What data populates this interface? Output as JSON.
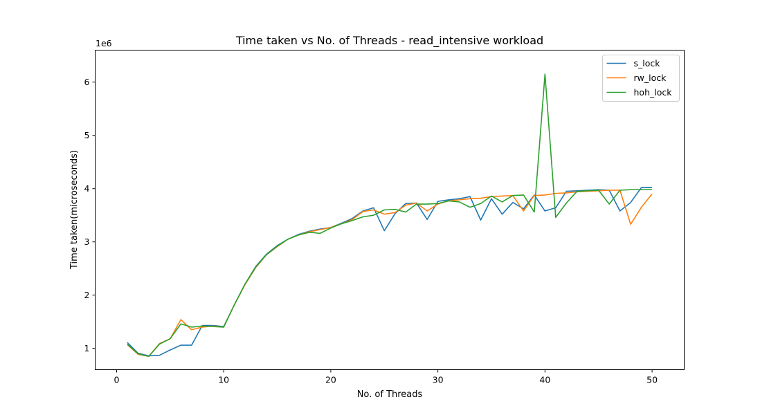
{
  "chart_data": {
    "type": "line",
    "title": "Time taken vs No. of Threads - read_intensive workload",
    "xlabel": "No. of Threads",
    "ylabel": "Time taken(microseconds)",
    "y_offset_label": "1e6",
    "xlim": [
      -2,
      53
    ],
    "ylim": [
      0.6,
      6.6
    ],
    "xticks": [
      0,
      10,
      20,
      30,
      40,
      50
    ],
    "yticks": [
      1,
      2,
      3,
      4,
      5,
      6
    ],
    "grid": false,
    "legend": "top-right",
    "x": [
      1,
      2,
      3,
      4,
      5,
      6,
      7,
      8,
      9,
      10,
      11,
      12,
      13,
      14,
      15,
      16,
      17,
      18,
      19,
      20,
      21,
      22,
      23,
      24,
      25,
      26,
      27,
      28,
      29,
      30,
      31,
      32,
      33,
      34,
      35,
      36,
      37,
      38,
      39,
      40,
      41,
      42,
      43,
      44,
      45,
      46,
      47,
      48,
      49,
      50
    ],
    "series": [
      {
        "name": "s_lock",
        "color": "#1f77b4",
        "values": [
          1.11,
          0.91,
          0.86,
          0.87,
          0.97,
          1.06,
          1.06,
          1.43,
          1.43,
          1.41,
          1.82,
          2.21,
          2.54,
          2.77,
          2.93,
          3.05,
          3.14,
          3.2,
          3.24,
          3.27,
          3.35,
          3.44,
          3.58,
          3.64,
          3.21,
          3.53,
          3.72,
          3.73,
          3.42,
          3.76,
          3.79,
          3.81,
          3.85,
          3.41,
          3.81,
          3.52,
          3.74,
          3.62,
          3.88,
          3.58,
          3.64,
          3.95,
          3.96,
          3.97,
          3.98,
          3.97,
          3.58,
          3.74,
          4.02,
          4.02
        ]
      },
      {
        "name": "rw_lock",
        "color": "#ff7f0e",
        "values": [
          1.07,
          0.89,
          0.85,
          1.09,
          1.18,
          1.54,
          1.35,
          1.4,
          1.42,
          1.4,
          1.82,
          2.2,
          2.52,
          2.76,
          2.91,
          3.05,
          3.13,
          3.19,
          3.23,
          3.27,
          3.34,
          3.42,
          3.57,
          3.6,
          3.52,
          3.55,
          3.69,
          3.73,
          3.58,
          3.71,
          3.77,
          3.79,
          3.81,
          3.82,
          3.85,
          3.86,
          3.87,
          3.58,
          3.87,
          3.88,
          3.91,
          3.92,
          3.94,
          3.95,
          3.96,
          3.97,
          3.97,
          3.33,
          3.65,
          3.9
        ]
      },
      {
        "name": "hoh_lock",
        "color": "#2ca02c",
        "values": [
          1.08,
          0.9,
          0.85,
          1.08,
          1.18,
          1.46,
          1.4,
          1.42,
          1.41,
          1.4,
          1.82,
          2.21,
          2.53,
          2.76,
          2.92,
          3.05,
          3.13,
          3.18,
          3.16,
          3.26,
          3.34,
          3.4,
          3.47,
          3.5,
          3.6,
          3.61,
          3.56,
          3.71,
          3.71,
          3.72,
          3.77,
          3.75,
          3.65,
          3.72,
          3.86,
          3.75,
          3.87,
          3.88,
          3.56,
          6.15,
          3.46,
          3.73,
          3.95,
          3.96,
          3.97,
          3.71,
          3.97,
          3.98,
          3.98,
          3.98
        ]
      }
    ]
  }
}
